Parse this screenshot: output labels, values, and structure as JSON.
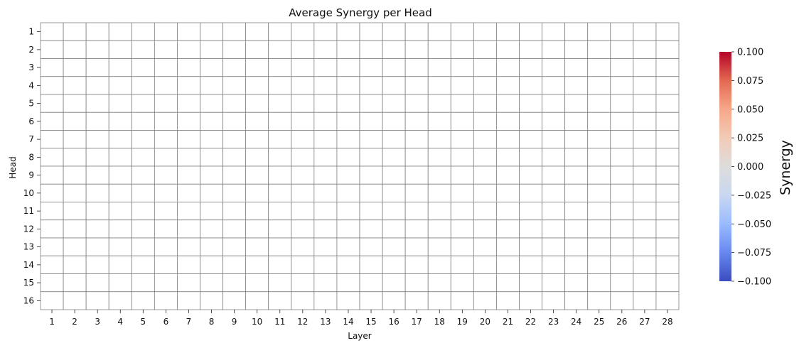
{
  "chart_data": {
    "type": "heatmap",
    "title": "Average Synergy per Head",
    "xlabel": "Layer",
    "ylabel": "Head",
    "x_categories": [
      "1",
      "2",
      "3",
      "4",
      "5",
      "6",
      "7",
      "8",
      "9",
      "10",
      "11",
      "12",
      "13",
      "14",
      "15",
      "16",
      "17",
      "18",
      "19",
      "20",
      "21",
      "22",
      "23",
      "24",
      "25",
      "26",
      "27",
      "28"
    ],
    "y_categories": [
      "1",
      "2",
      "3",
      "4",
      "5",
      "6",
      "7",
      "8",
      "9",
      "10",
      "11",
      "12",
      "13",
      "14",
      "15",
      "16"
    ],
    "values": [],
    "cell_fill": "#ffffff",
    "grid_color": "#808080",
    "colorbar": {
      "label": "Synergy",
      "range": [
        -0.1,
        0.1
      ],
      "ticks": [
        "0.100",
        "0.075",
        "0.050",
        "0.025",
        "0.000",
        "−0.025",
        "−0.050",
        "−0.075",
        "−0.100"
      ],
      "colormap": "coolwarm",
      "color_stops": [
        "#3b4cc0",
        "#6788ee",
        "#9abbff",
        "#c9d7f0",
        "#dddcdc",
        "#f2cbb7",
        "#f7a789",
        "#e26952",
        "#b40426"
      ]
    }
  }
}
